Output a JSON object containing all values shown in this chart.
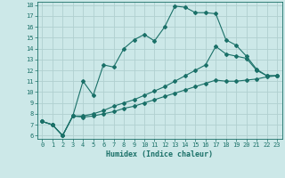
{
  "xlabel": "Humidex (Indice chaleur)",
  "background_color": "#cce8e8",
  "grid_color": "#b0d0d0",
  "line_color": "#1a7068",
  "x_values": [
    0,
    1,
    2,
    3,
    4,
    5,
    6,
    7,
    8,
    9,
    10,
    11,
    12,
    13,
    14,
    15,
    16,
    17,
    18,
    19,
    20,
    21,
    22,
    23
  ],
  "series1": [
    7.3,
    7.0,
    6.0,
    7.8,
    11.0,
    9.7,
    12.5,
    12.3,
    14.0,
    14.8,
    15.3,
    14.7,
    16.0,
    17.9,
    17.8,
    17.3,
    17.3,
    17.2,
    14.8,
    14.3,
    13.3,
    12.1,
    11.5,
    11.5
  ],
  "series2": [
    7.3,
    7.0,
    6.0,
    7.8,
    7.8,
    8.0,
    8.3,
    8.7,
    9.0,
    9.3,
    9.7,
    10.1,
    10.5,
    11.0,
    11.5,
    12.0,
    12.5,
    14.2,
    13.5,
    13.3,
    13.1,
    12.0,
    11.5,
    11.5
  ],
  "series3": [
    7.3,
    7.0,
    6.0,
    7.8,
    7.7,
    7.8,
    8.0,
    8.2,
    8.5,
    8.7,
    9.0,
    9.3,
    9.6,
    9.9,
    10.2,
    10.5,
    10.8,
    11.1,
    11.0,
    11.0,
    11.1,
    11.2,
    11.4,
    11.5
  ],
  "ylim_min": 6,
  "ylim_max": 18,
  "xlim_min": 0,
  "xlim_max": 23,
  "yticks": [
    6,
    7,
    8,
    9,
    10,
    11,
    12,
    13,
    14,
    15,
    16,
    17,
    18
  ],
  "xticks": [
    0,
    1,
    2,
    3,
    4,
    5,
    6,
    7,
    8,
    9,
    10,
    11,
    12,
    13,
    14,
    15,
    16,
    17,
    18,
    19,
    20,
    21,
    22,
    23
  ],
  "tick_fontsize": 5,
  "xlabel_fontsize": 6
}
